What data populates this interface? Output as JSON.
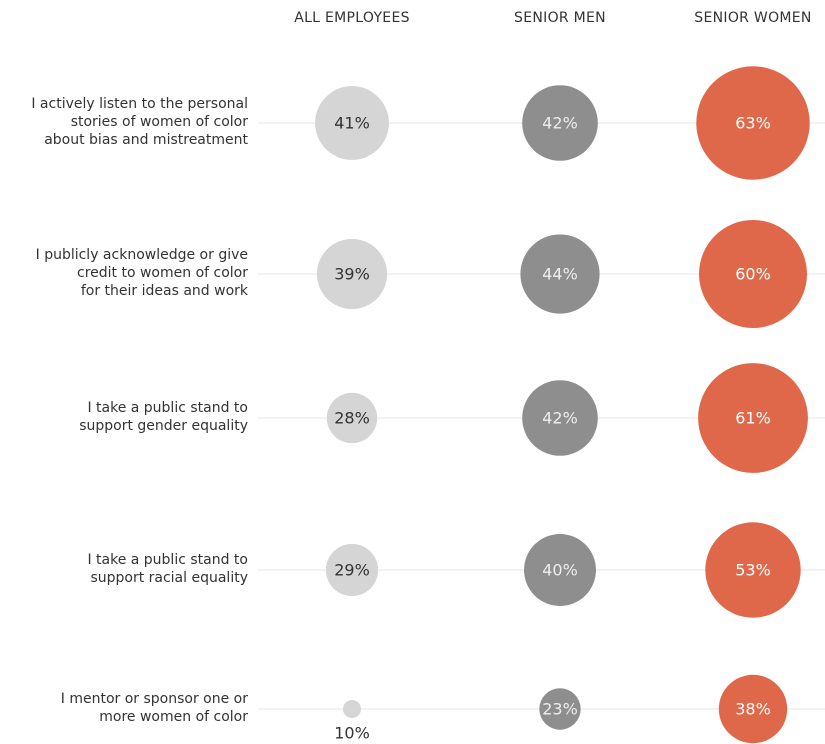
{
  "chart_data": {
    "type": "bubble",
    "categories": [
      "I actively listen to the personal\nstories of women of color\nabout bias and mistreatment",
      "I publicly acknowledge or give\ncredit to women of color\nfor their ideas and work",
      "I take a public stand to\nsupport gender equality",
      "I take a public stand to\nsupport racial equality",
      "I mentor or sponsor one or\nmore women of color"
    ],
    "series": [
      {
        "name": "ALL EMPLOYEES",
        "color": "#d5d5d5",
        "values": [
          41,
          39,
          28,
          29,
          10
        ],
        "value_labels": [
          "41%",
          "39%",
          "28%",
          "29%",
          "10%"
        ]
      },
      {
        "name": "SENIOR MEN",
        "color": "#8e8e8e",
        "values": [
          42,
          44,
          42,
          40,
          23
        ],
        "value_labels": [
          "42%",
          "44%",
          "42%",
          "40%",
          "23%"
        ]
      },
      {
        "name": "SENIOR WOMEN",
        "color": "#e0684a",
        "values": [
          63,
          60,
          61,
          53,
          38
        ],
        "value_labels": [
          "63%",
          "60%",
          "61%",
          "53%",
          "38%"
        ]
      }
    ]
  }
}
